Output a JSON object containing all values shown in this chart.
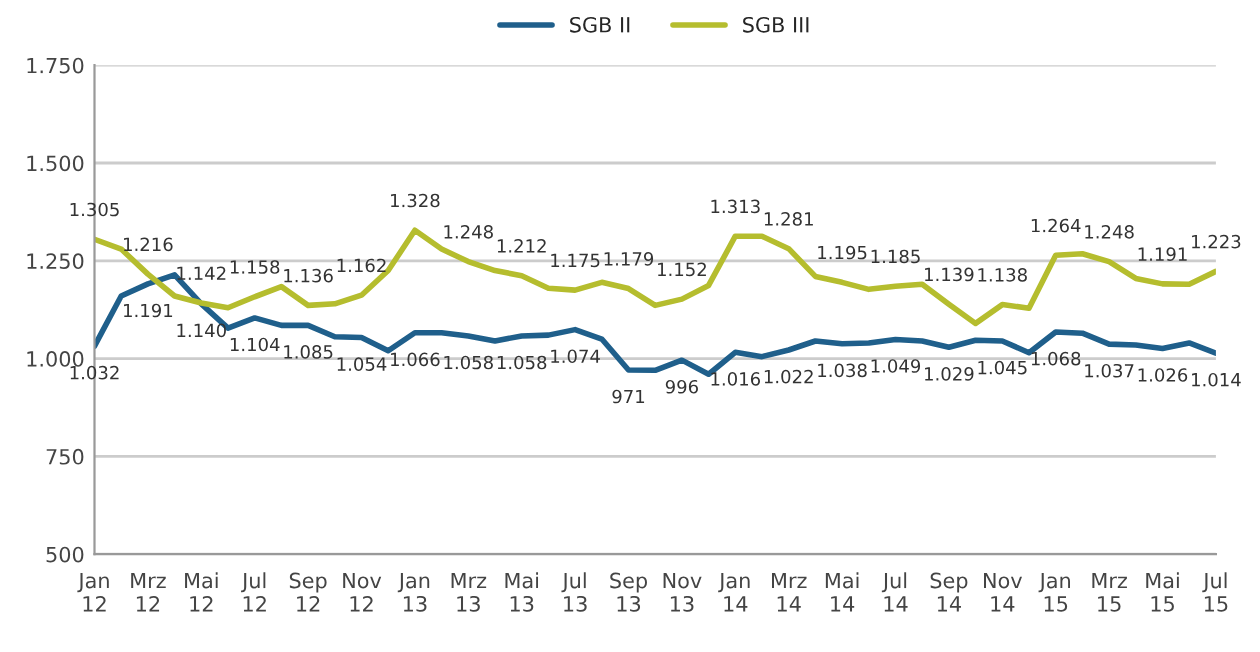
{
  "chart_data": {
    "type": "line",
    "categories": [
      "Jan\n12",
      null,
      "Mrz\n12",
      null,
      "Mai\n12",
      null,
      "Jul\n12",
      null,
      "Sep\n12",
      null,
      "Nov\n12",
      null,
      "Jan\n13",
      null,
      "Mrz\n13",
      null,
      "Mai\n13",
      null,
      "Jul\n13",
      null,
      "Sep\n13",
      null,
      "Nov\n13",
      null,
      "Jan\n14",
      null,
      "Mrz\n14",
      null,
      "Mai\n14",
      null,
      "Jul\n14",
      null,
      "Sep\n14",
      null,
      "Nov\n14",
      null,
      "Jan\n15",
      null,
      "Mrz\n15",
      null,
      "Mai\n15",
      null,
      "Jul\n15"
    ],
    "series": [
      {
        "name": "SGB II",
        "color": "#1f5f8b",
        "values": [
          1032,
          1160,
          1191,
          1214,
          1140,
          1078,
          1104,
          1085,
          1085,
          1056,
          1054,
          1020,
          1066,
          1066,
          1058,
          1045,
          1058,
          1060,
          1074,
          1050,
          971,
          970,
          996,
          960,
          1016,
          1005,
          1022,
          1045,
          1038,
          1040,
          1049,
          1045,
          1029,
          1047,
          1045,
          1015,
          1068,
          1065,
          1037,
          1035,
          1026,
          1040,
          1014
        ],
        "value_labels": [
          "1.032",
          null,
          "1.191",
          null,
          "1.140",
          null,
          "1.104",
          null,
          "1.085",
          null,
          "1.054",
          null,
          "1.066",
          null,
          "1.058",
          null,
          "1.058",
          null,
          "1.074",
          null,
          "971",
          null,
          "996",
          null,
          "1.016",
          null,
          "1.022",
          null,
          "1.038",
          null,
          "1.049",
          null,
          "1.029",
          null,
          "1.045",
          null,
          "1.068",
          null,
          "1.037",
          null,
          "1.026",
          null,
          "1.014"
        ]
      },
      {
        "name": "SGB III",
        "color": "#b5bd2e",
        "values": [
          1305,
          1280,
          1216,
          1160,
          1142,
          1130,
          1158,
          1184,
          1136,
          1140,
          1162,
          1225,
          1328,
          1280,
          1248,
          1225,
          1212,
          1180,
          1175,
          1195,
          1179,
          1136,
          1152,
          1187,
          1313,
          1313,
          1281,
          1210,
          1195,
          1177,
          1185,
          1190,
          1139,
          1090,
          1138,
          1129,
          1264,
          1268,
          1248,
          1205,
          1191,
          1190,
          1223
        ],
        "value_labels": [
          "1.305",
          null,
          "1.216",
          null,
          "1.142",
          null,
          "1.158",
          null,
          "1.136",
          null,
          "1.162",
          null,
          "1.328",
          null,
          "1.248",
          null,
          "1.212",
          null,
          "1.175",
          null,
          "1.179",
          null,
          "1.152",
          null,
          "1.313",
          null,
          "1.281",
          null,
          "1.195",
          null,
          "1.185",
          null,
          "1.139",
          null,
          "1.138",
          null,
          "1.264",
          null,
          "1.248",
          null,
          "1.191",
          null,
          "1.223"
        ]
      }
    ],
    "ylim": [
      500,
      1750
    ],
    "yticks": [
      {
        "value": 500,
        "label": "500"
      },
      {
        "value": 750,
        "label": "750"
      },
      {
        "value": 1000,
        "label": "1.000"
      },
      {
        "value": 1250,
        "label": "1.250"
      },
      {
        "value": 1500,
        "label": "1.500"
      },
      {
        "value": 1750,
        "label": "1.750"
      }
    ],
    "grid": "y",
    "legend": "top",
    "marker": "none",
    "line_style": "solid"
  }
}
